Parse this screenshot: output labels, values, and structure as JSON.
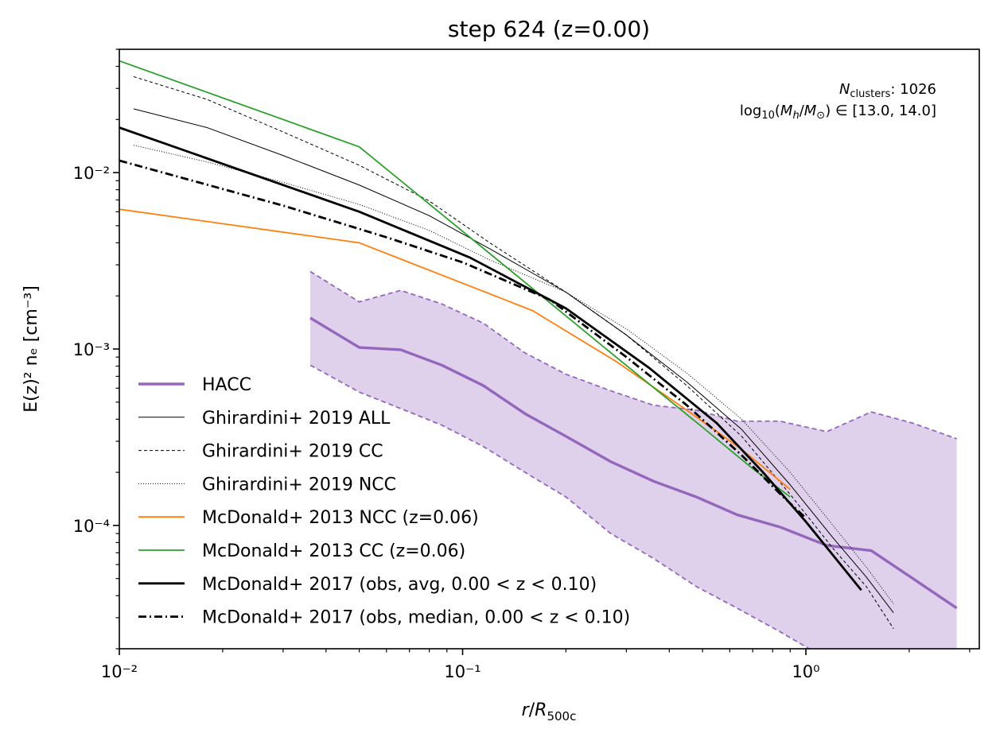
{
  "chart_data": {
    "type": "line",
    "title": "step 624 (z=0.00)",
    "xlabel": "r/R500c",
    "ylabel": "E(z)² nₑ [cm⁻³]",
    "xscale": "log",
    "yscale": "log",
    "xlim": [
      0.01,
      3.2
    ],
    "ylim": [
      2e-05,
      0.05
    ],
    "x_ticks": [
      {
        "value": 0.01,
        "label": "10⁻²"
      },
      {
        "value": 0.1,
        "label": "10⁻¹"
      },
      {
        "value": 1,
        "label": "10⁰"
      }
    ],
    "y_ticks": [
      {
        "value": 0.0001,
        "label": "10⁻⁴"
      },
      {
        "value": 0.001,
        "label": "10⁻³"
      },
      {
        "value": 0.01,
        "label": "10⁻²"
      }
    ],
    "grid": false,
    "legend_position": "lower-left",
    "annotation": {
      "line1": "N_clusters: 1026",
      "line2": "log10(M_h/M_⊙) ∈ [13.0, 14.0]"
    },
    "band": {
      "series": "HACC",
      "color": "#9467bd",
      "x": [
        0.036,
        0.05,
        0.066,
        0.087,
        0.115,
        0.152,
        0.2,
        0.27,
        0.36,
        0.48,
        0.63,
        0.84,
        1.15,
        1.55,
        2.05,
        2.75
      ],
      "upper": [
        0.00275,
        0.00185,
        0.00215,
        0.0018,
        0.0014,
        0.00095,
        0.00072,
        0.00058,
        0.00048,
        0.00045,
        0.00039,
        0.00039,
        0.00034,
        0.00044,
        0.00038,
        0.00031
      ],
      "lower": [
        0.00081,
        0.00057,
        0.00046,
        0.00037,
        0.00028,
        0.0002,
        0.000145,
        9e-05,
        6.5e-05,
        4.5e-05,
        3.4e-05,
        2.5e-05,
        1.75e-05,
        1.25e-05,
        9e-06,
        7e-06
      ]
    },
    "series": [
      {
        "name": "HACC",
        "color": "#9467bd",
        "width": 3.4,
        "dash": "",
        "x": [
          0.036,
          0.05,
          0.066,
          0.087,
          0.115,
          0.152,
          0.2,
          0.27,
          0.36,
          0.48,
          0.63,
          0.84,
          1.15,
          1.55,
          2.05,
          2.75
        ],
        "y": [
          0.0015,
          0.00102,
          0.00099,
          0.00081,
          0.00062,
          0.00043,
          0.00032,
          0.00023,
          0.000178,
          0.000145,
          0.000115,
          9.8e-05,
          7.7e-05,
          7.2e-05,
          5e-05,
          3.4e-05
        ]
      },
      {
        "name": "Ghirardini+ 2019 ALL",
        "color": "#000000",
        "width": 1.0,
        "dash": "",
        "x": [
          0.011,
          0.018,
          0.03,
          0.05,
          0.08,
          0.12,
          0.2,
          0.3,
          0.45,
          0.65,
          0.9,
          1.2,
          1.5,
          1.8
        ],
        "y": [
          0.023,
          0.018,
          0.0125,
          0.0085,
          0.0057,
          0.0037,
          0.0021,
          0.0012,
          0.00065,
          0.00035,
          0.00017,
          8.5e-05,
          5.1e-05,
          3.2e-05
        ]
      },
      {
        "name": "Ghirardini+ 2019 CC",
        "color": "#000000",
        "width": 1.0,
        "dash": "4,3",
        "x": [
          0.011,
          0.018,
          0.03,
          0.05,
          0.08,
          0.12,
          0.2,
          0.3,
          0.45,
          0.65,
          0.9,
          1.2,
          1.5,
          1.8
        ],
        "y": [
          0.035,
          0.026,
          0.017,
          0.011,
          0.0069,
          0.004,
          0.0021,
          0.0012,
          0.00062,
          0.00032,
          0.00015,
          7.4e-05,
          4.5e-05,
          2.6e-05
        ]
      },
      {
        "name": "Ghirardini+ 2019 NCC",
        "color": "#000000",
        "width": 1.0,
        "dash": "1,2",
        "x": [
          0.011,
          0.018,
          0.03,
          0.05,
          0.08,
          0.12,
          0.2,
          0.3,
          0.45,
          0.65,
          0.9,
          1.2,
          1.5,
          1.8
        ],
        "y": [
          0.0143,
          0.0115,
          0.0088,
          0.0066,
          0.0047,
          0.0032,
          0.0021,
          0.0013,
          0.00073,
          0.0004,
          0.0002,
          0.0001,
          5.8e-05,
          3.6e-05
        ]
      },
      {
        "name": "McDonald+ 2013 NCC (z=0.06)",
        "color": "#ff7f0e",
        "width": 1.8,
        "dash": "",
        "x": [
          0.01,
          0.05,
          0.16,
          0.28,
          0.45,
          0.65,
          0.9
        ],
        "y": [
          0.0062,
          0.004,
          0.00165,
          0.00085,
          0.00045,
          0.00027,
          0.00016
        ]
      },
      {
        "name": "McDonald+ 2013 CC (z=0.06)",
        "color": "#2ca02c",
        "width": 1.8,
        "dash": "",
        "x": [
          0.01,
          0.05,
          0.16,
          0.28,
          0.5,
          0.7,
          0.9
        ],
        "y": [
          0.043,
          0.014,
          0.0022,
          0.0009,
          0.00036,
          0.00021,
          0.000145
        ]
      },
      {
        "name": "McDonald+ 2017 (obs, avg, 0.00 < z < 0.10)",
        "color": "#000000",
        "width": 2.8,
        "dash": "",
        "x": [
          0.01,
          0.05,
          0.105,
          0.2,
          0.35,
          0.55,
          0.75,
          1.0,
          1.45
        ],
        "y": [
          0.018,
          0.006,
          0.0033,
          0.0017,
          0.00078,
          0.00038,
          0.0002,
          0.000105,
          4.3e-05
        ]
      },
      {
        "name": "McDonald+ 2017 (obs, median, 0.00 < z < 0.10)",
        "color": "#000000",
        "width": 2.8,
        "dash": "10,4,2,4",
        "x": [
          0.01,
          0.03,
          0.06,
          0.1,
          0.18,
          0.3,
          0.45,
          0.65,
          0.85,
          1.0
        ],
        "y": [
          0.0117,
          0.0065,
          0.0043,
          0.0031,
          0.0019,
          0.0009,
          0.00048,
          0.00025,
          0.000148,
          0.00011
        ]
      }
    ]
  }
}
